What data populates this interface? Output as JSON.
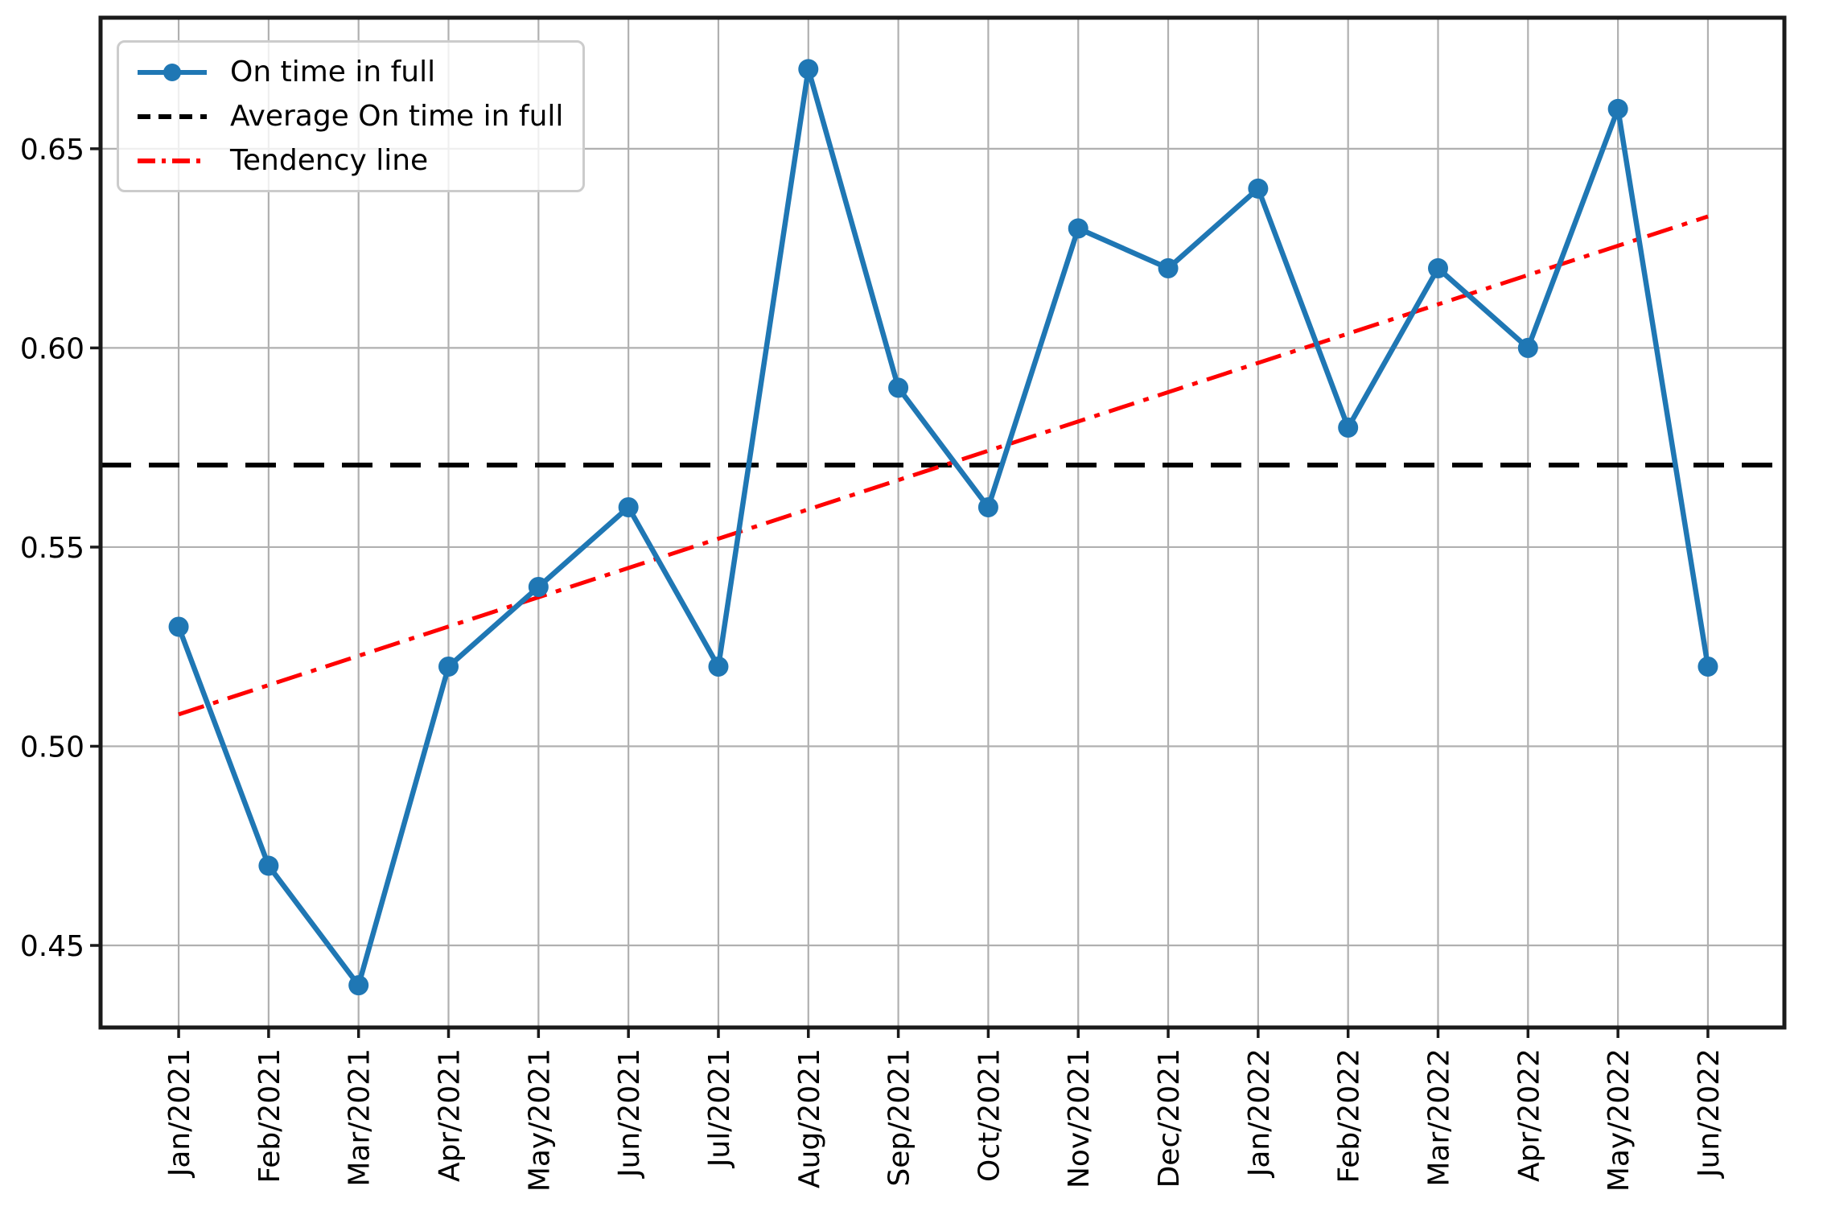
{
  "chart_data": {
    "type": "line",
    "title": "",
    "xlabel": "",
    "ylabel": "",
    "categories": [
      "Jan/2021",
      "Feb/2021",
      "Mar/2021",
      "Apr/2021",
      "May/2021",
      "Jun/2021",
      "Jul/2021",
      "Aug/2021",
      "Sep/2021",
      "Oct/2021",
      "Nov/2021",
      "Dec/2021",
      "Jan/2022",
      "Feb/2022",
      "Mar/2022",
      "Apr/2022",
      "May/2022",
      "Jun/2022"
    ],
    "series": [
      {
        "name": "On time in full",
        "kind": "line-with-markers",
        "color": "#1f77b4",
        "values": [
          0.53,
          0.47,
          0.44,
          0.52,
          0.54,
          0.56,
          0.52,
          0.67,
          0.59,
          0.56,
          0.63,
          0.62,
          0.64,
          0.58,
          0.62,
          0.6,
          0.66,
          0.52
        ]
      },
      {
        "name": "Average On time in full",
        "kind": "horizontal-dashed-line",
        "color": "#000000",
        "value": 0.5706
      },
      {
        "name": "Tendency line",
        "kind": "trend-dashdot-line",
        "color": "#ff0000",
        "start_value": 0.508,
        "end_value": 0.633
      }
    ],
    "yticks": [
      0.45,
      0.5,
      0.55,
      0.6,
      0.65
    ],
    "ytick_format_decimals": 2,
    "ylim": [
      0.4294,
      0.6829
    ],
    "xlim": [
      -0.868,
      17.85
    ],
    "grid": true,
    "grid_color": "#b0b0b0",
    "spine_color": "#1a1a1a",
    "background_color": "#ffffff",
    "legend_position": "upper-left",
    "x_tick_label_rotation_deg": 90
  }
}
